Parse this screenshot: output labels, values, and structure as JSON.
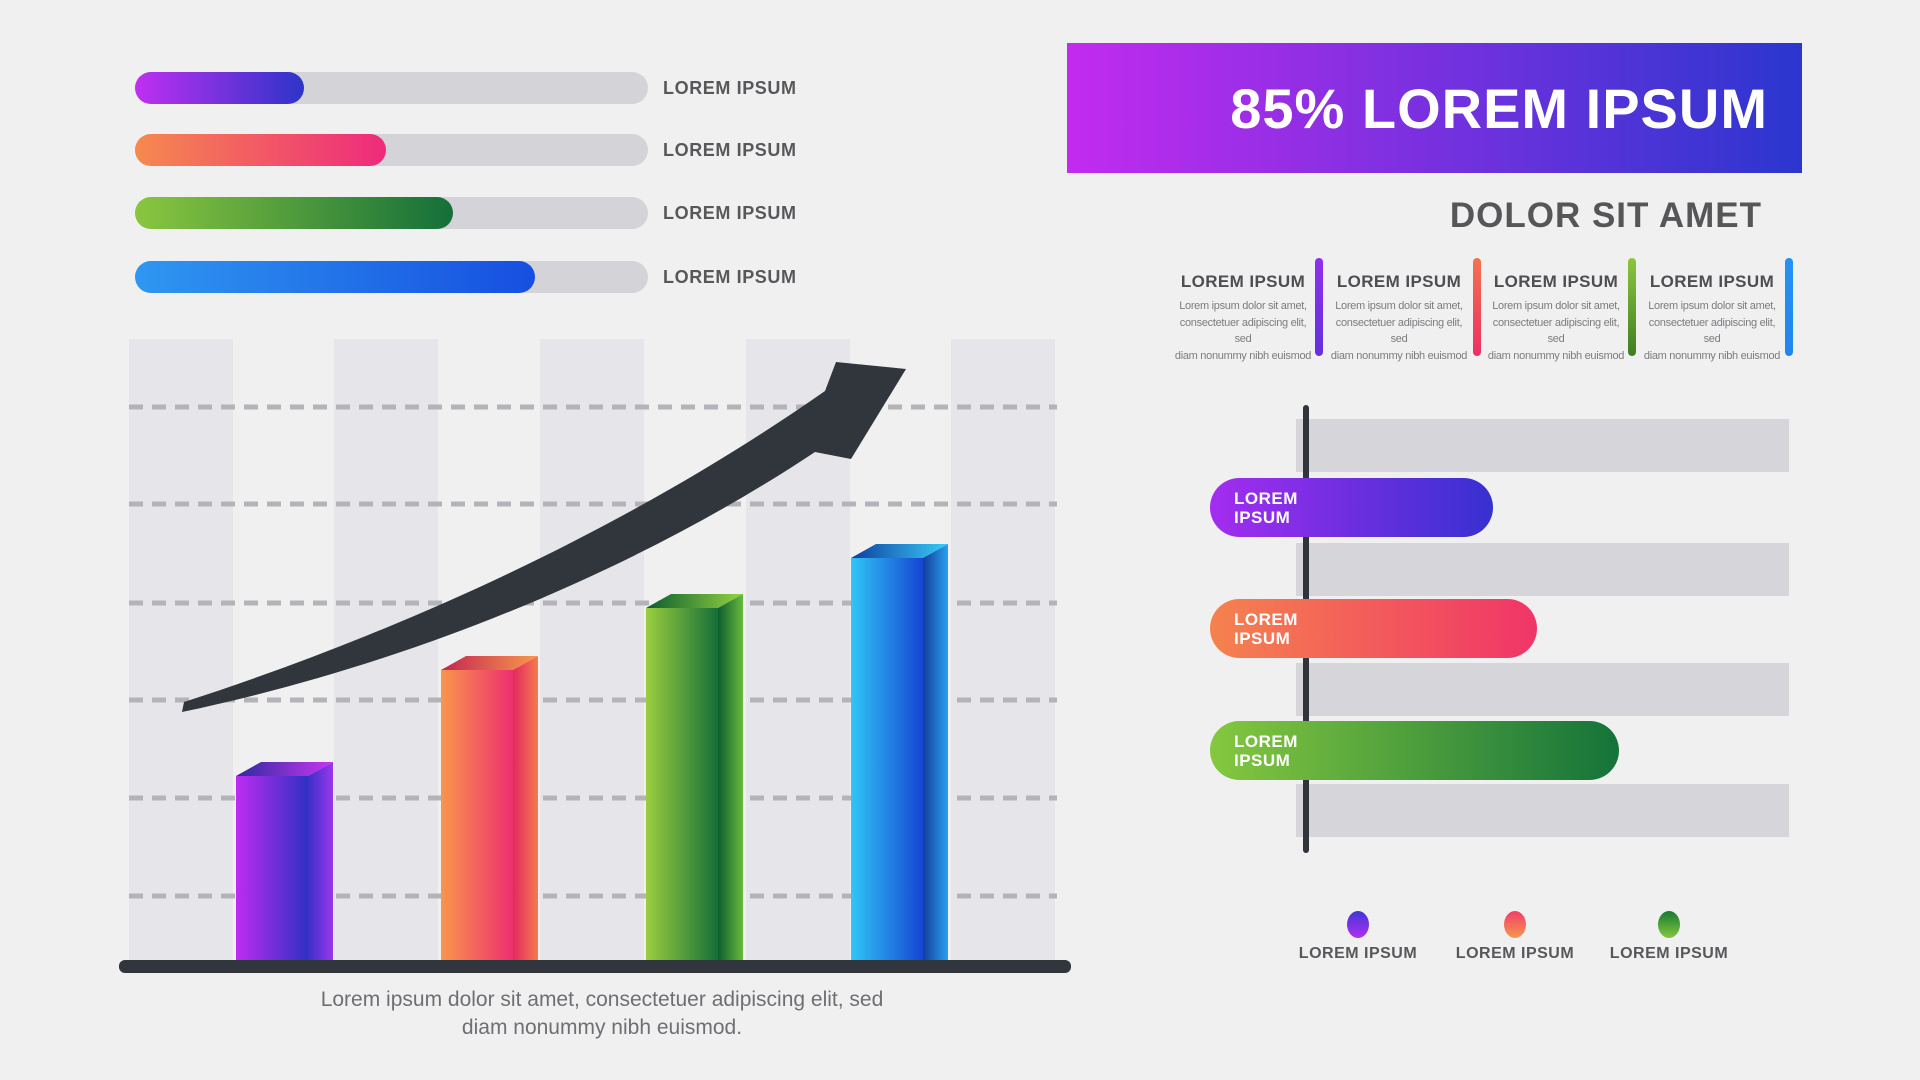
{
  "page": {
    "background": "#f0f0f1"
  },
  "left_panel": {
    "progress_bars": [
      {
        "label": "LOREM IPSUM",
        "value_pct": 33,
        "color_from": "#c02ff2",
        "color_to": "#2d34c8"
      },
      {
        "label": "LOREM IPSUM",
        "value_pct": 49,
        "color_from": "#f6894f",
        "color_to": "#ee2a7c"
      },
      {
        "label": "LOREM IPSUM",
        "value_pct": 62,
        "color_from": "#8ac63f",
        "color_to": "#146f39"
      },
      {
        "label": "LOREM IPSUM",
        "value_pct": 78,
        "color_from": "#2f97f1",
        "color_to": "#164fe0"
      }
    ],
    "caption_line1": "Lorem ipsum dolor sit amet,  consectetuer adipiscing elit, sed",
    "caption_line2": "diam nonummy nibh euismod."
  },
  "column_chart": {
    "bars": [
      {
        "name": "column-1",
        "value_pct": 34,
        "front_from": "#bd2cf2",
        "front_to": "#3030c2",
        "top_from": "#2b2d9c",
        "top_to": "#cb34f4",
        "side_from": "#3b2fc8",
        "side_to": "#9a37ea"
      },
      {
        "name": "column-2",
        "value_pct": 53,
        "front_from": "#f8964c",
        "front_to": "#ee2f70",
        "top_from": "#c22553",
        "top_to": "#f9994b",
        "side_from": "#e3295f",
        "side_to": "#f57b4e"
      },
      {
        "name": "column-3",
        "value_pct": 64,
        "front_from": "#9bce3e",
        "front_to": "#156f39",
        "top_from": "#0c5c2e",
        "top_to": "#93d341",
        "side_from": "#0e5e2f",
        "side_to": "#67b93c"
      },
      {
        "name": "column-4",
        "value_pct": 73,
        "front_from": "#30c6f5",
        "front_to": "#1545d4",
        "top_from": "#0f3e9e",
        "top_to": "#38cdf8",
        "side_from": "#123f9e",
        "side_to": "#2aa0ee"
      }
    ],
    "gridlines": 6,
    "trend": "upward-arrow"
  },
  "banner": {
    "title": "85% LOREM IPSUM",
    "subtitle": "DOLOR SIT AMET",
    "gradient_from": "#c32bef",
    "gradient_to": "#2b36cf"
  },
  "feature_columns": {
    "items": [
      {
        "heading": "LOREM IPSUM",
        "body": "Lorem ipsum dolor sit amet,\nconsectetuer adipiscing elit, sed\ndiam nonummy nibh euismod",
        "divider_from": "#9030ee",
        "divider_to": "#6430e0"
      },
      {
        "heading": "LOREM IPSUM",
        "body": "Lorem ipsum dolor sit amet,\nconsectetuer adipiscing elit, sed\ndiam nonummy nibh euismod",
        "divider_from": "#f4724f",
        "divider_to": "#ec2f63"
      },
      {
        "heading": "LOREM IPSUM",
        "body": "Lorem ipsum dolor sit amet,\nconsectetuer adipiscing elit, sed\ndiam nonummy nibh euismod",
        "divider_from": "#8cc63e",
        "divider_to": "#3f7d23"
      },
      {
        "heading": "LOREM IPSUM",
        "body": "Lorem ipsum dolor sit amet,\nconsectetuer adipiscing elit, sed\ndiam nonummy nibh euismod",
        "divider_from": "#2493f3",
        "divider_to": "#1f86ee"
      }
    ]
  },
  "hbar_chart": {
    "axis_color": "#2f353a",
    "row_color": "#d6d6da",
    "bars": [
      {
        "label": "LOREM\nIPSUM",
        "value_pct": 39,
        "color_from": "#a42df0",
        "color_to": "#3730d0"
      },
      {
        "label": "LOREM\nIPSUM",
        "value_pct": 48,
        "color_from": "#f5824e",
        "color_to": "#f03568"
      },
      {
        "label": "LOREM\nIPSUM",
        "value_pct": 65,
        "color_from": "#85c83f",
        "color_to": "#14733a"
      }
    ]
  },
  "legend": {
    "items": [
      {
        "label": "LOREM IPSUM",
        "dot_from": "#4136d6",
        "dot_to": "#b02ff2"
      },
      {
        "label": "LOREM IPSUM",
        "dot_from": "#f23f69",
        "dot_to": "#f6964d"
      },
      {
        "label": "LOREM IPSUM",
        "dot_from": "#177a33",
        "dot_to": "#84c63e"
      }
    ]
  },
  "chart_data": [
    {
      "type": "bar",
      "subtype": "horizontal-progress",
      "categories": [
        "LOREM IPSUM",
        "LOREM IPSUM",
        "LOREM IPSUM",
        "LOREM IPSUM"
      ],
      "values": [
        33,
        49,
        62,
        78
      ],
      "unit": "percent-of-track (estimated, no numeric labels shown)",
      "title": "",
      "xlabel": "",
      "ylabel": ""
    },
    {
      "type": "bar",
      "subtype": "3d-column",
      "categories": [
        "column-1",
        "column-2",
        "column-3",
        "column-4"
      ],
      "values": [
        34,
        53,
        64,
        73
      ],
      "unit": "percent-of-plot-height (estimated, no numeric labels shown)",
      "ylim": [
        0,
        100
      ],
      "grid": "6 dashed horizontal gridlines, 5 vertical background stripes",
      "annotations": [
        "dark tapered swoosh arrow trending up to the right"
      ],
      "caption": "Lorem ipsum dolor sit amet,  consectetuer adipiscing elit, sed diam nonummy nibh euismod."
    },
    {
      "type": "bar",
      "subtype": "horizontal",
      "categories": [
        "LOREM IPSUM",
        "LOREM IPSUM",
        "LOREM IPSUM"
      ],
      "values": [
        39,
        48,
        65
      ],
      "unit": "percent-of-axis-span (estimated, no numeric labels shown)",
      "legend": [
        "LOREM IPSUM",
        "LOREM IPSUM",
        "LOREM IPSUM"
      ],
      "legend_position": "bottom",
      "title": "85% LOREM IPSUM",
      "subtitle": "DOLOR SIT AMET"
    }
  ]
}
